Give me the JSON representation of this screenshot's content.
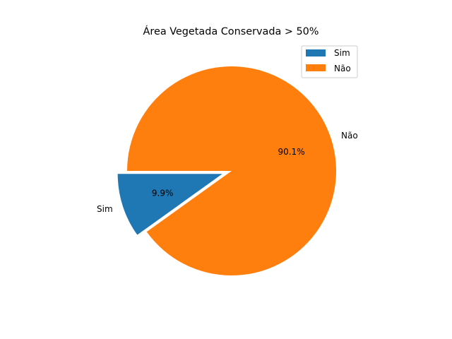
{
  "chart_data": {
    "type": "pie",
    "title": "Área Vegetada Conservada  > 50%",
    "labels": [
      "Sim",
      "Não"
    ],
    "values": [
      9.9,
      90.1
    ],
    "percent_labels": [
      "9.9%",
      "90.1%"
    ],
    "colors": [
      "#1f77b4",
      "#ff7f0e"
    ],
    "exploded": [
      "Sim"
    ],
    "legend": {
      "placement": "top-right",
      "entries": [
        "Sim",
        "Não"
      ]
    }
  }
}
